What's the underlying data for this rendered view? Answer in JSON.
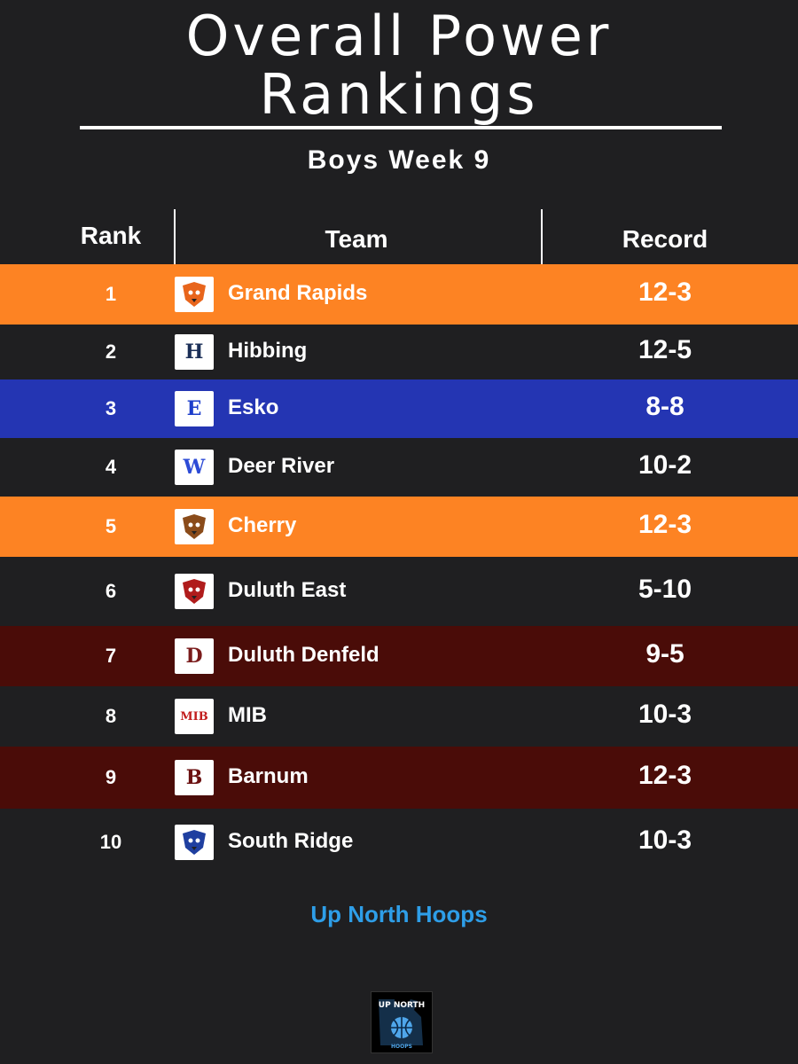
{
  "header": {
    "title_line1": "Overall Power",
    "title_line2": "Rankings",
    "subtitle": "Boys Week 9"
  },
  "columns": {
    "rank": "Rank",
    "team": "Team",
    "record": "Record"
  },
  "rows": [
    {
      "rank": "1",
      "team": "Grand Rapids",
      "record": "12-3",
      "bg": "#fd8323",
      "logo_icon": "thunderhawk-logo-icon",
      "logo_text": "",
      "logo_color": "#e8651c"
    },
    {
      "rank": "2",
      "team": "Hibbing",
      "record": "12-5",
      "bg": "#1f1f21",
      "logo_icon": "anchor-h-logo-icon",
      "logo_text": "H",
      "logo_color": "#1b2f57"
    },
    {
      "rank": "3",
      "team": "Esko",
      "record": "8-8",
      "bg": "#2435b3",
      "logo_icon": "esko-e-logo-icon",
      "logo_text": "E",
      "logo_color": "#1d3ecb"
    },
    {
      "rank": "4",
      "team": "Deer River",
      "record": "10-2",
      "bg": "#1f1f21",
      "logo_icon": "deer-river-w-logo-icon",
      "logo_text": "W",
      "logo_color": "#2d4bd6"
    },
    {
      "rank": "5",
      "team": "Cherry",
      "record": "12-3",
      "bg": "#fd8323",
      "logo_icon": "cherry-tigers-logo-icon",
      "logo_text": "",
      "logo_color": "#8a4b1a"
    },
    {
      "rank": "6",
      "team": "Duluth East",
      "record": "5-10",
      "bg": "#1f1f21",
      "logo_icon": "greyhound-logo-icon",
      "logo_text": "",
      "logo_color": "#b01c1c"
    },
    {
      "rank": "7",
      "team": "Duluth Denfeld",
      "record": "9-5",
      "bg": "#4a0c08",
      "logo_icon": "denfeld-d-logo-icon",
      "logo_text": "D",
      "logo_color": "#7a1b1b"
    },
    {
      "rank": "8",
      "team": "MIB",
      "record": "10-3",
      "bg": "#1f1f21",
      "logo_icon": "mib-logo-icon",
      "logo_text": "MIB",
      "logo_color": "#c21d1d"
    },
    {
      "rank": "9",
      "team": "Barnum",
      "record": "12-3",
      "bg": "#4a0c08",
      "logo_icon": "barnum-b-logo-icon",
      "logo_text": "B",
      "logo_color": "#6b1010"
    },
    {
      "rank": "10",
      "team": "South Ridge",
      "record": "10-3",
      "bg": "#1f1f21",
      "logo_icon": "panthers-logo-icon",
      "logo_text": "",
      "logo_color": "#1f3fa0"
    }
  ],
  "footer": {
    "brand": "Up North Hoops",
    "badge_icon": "up-north-hoops-basketball-icon",
    "badge_text_top": "UP NORTH",
    "badge_text_bottom": "HOOPS"
  },
  "colors": {
    "background": "#1f1f21",
    "orange": "#fd8323",
    "blue": "#2435b3",
    "maroon": "#4a0c08",
    "brand_blue": "#2e9ee8"
  }
}
